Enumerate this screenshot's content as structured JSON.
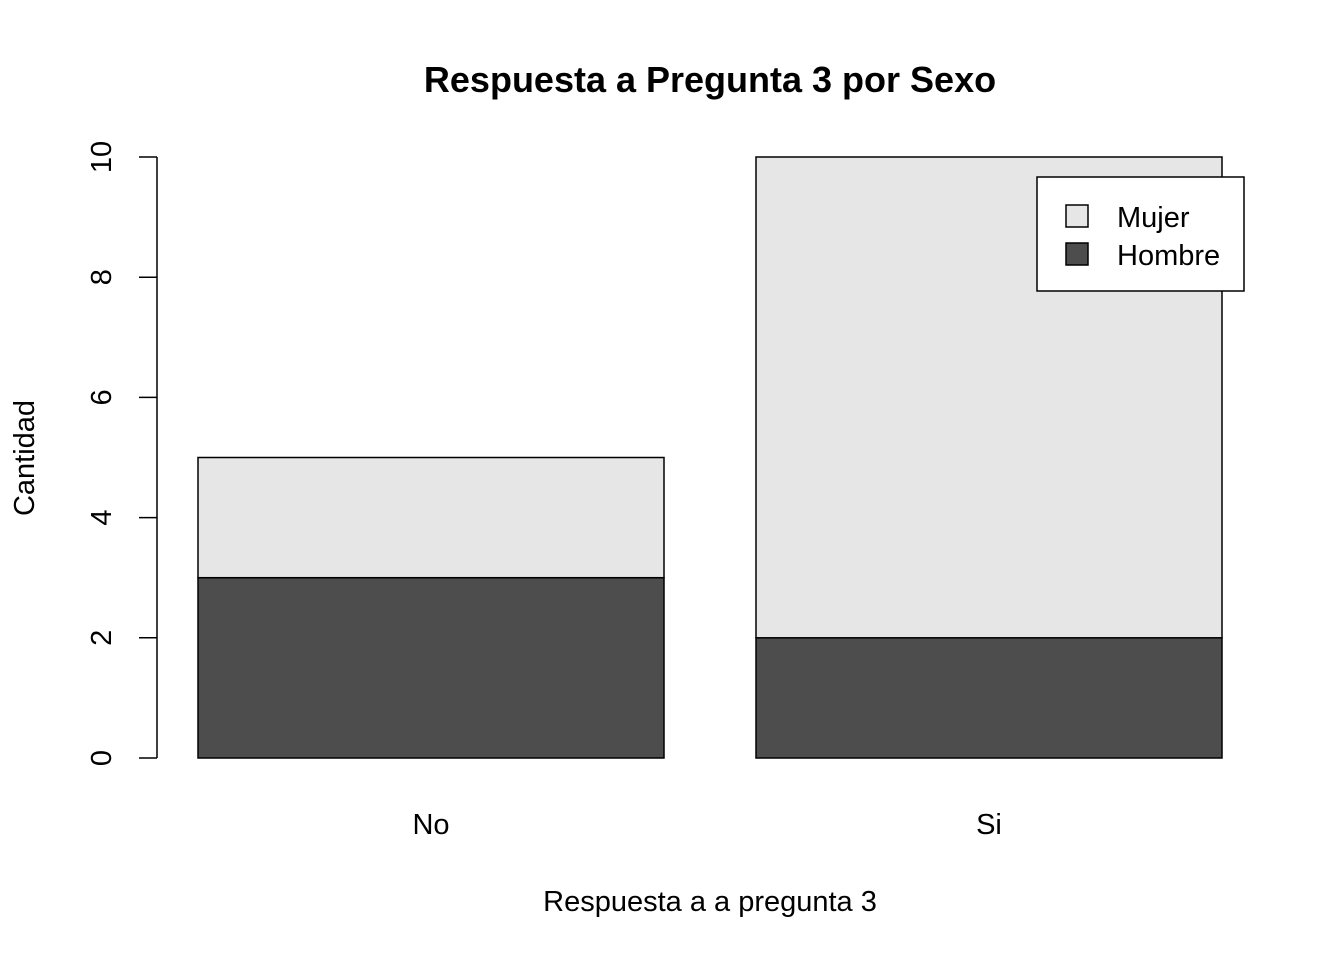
{
  "chart_data": {
    "type": "bar",
    "stacked": true,
    "title": "Respuesta a Pregunta 3 por Sexo",
    "xlabel": "Respuesta a a pregunta 3",
    "ylabel": "Cantidad",
    "categories": [
      "No",
      "Si"
    ],
    "series": [
      {
        "name": "Hombre",
        "values": [
          3,
          2
        ],
        "color": "#4d4d4d"
      },
      {
        "name": "Mujer",
        "values": [
          2,
          8
        ],
        "color": "#e6e6e6"
      }
    ],
    "legend_order": [
      "Mujer",
      "Hombre"
    ],
    "ylim": [
      0,
      10
    ],
    "yticks": [
      0,
      2,
      4,
      6,
      8,
      10
    ],
    "grid": false,
    "legend_position": "top-right"
  }
}
